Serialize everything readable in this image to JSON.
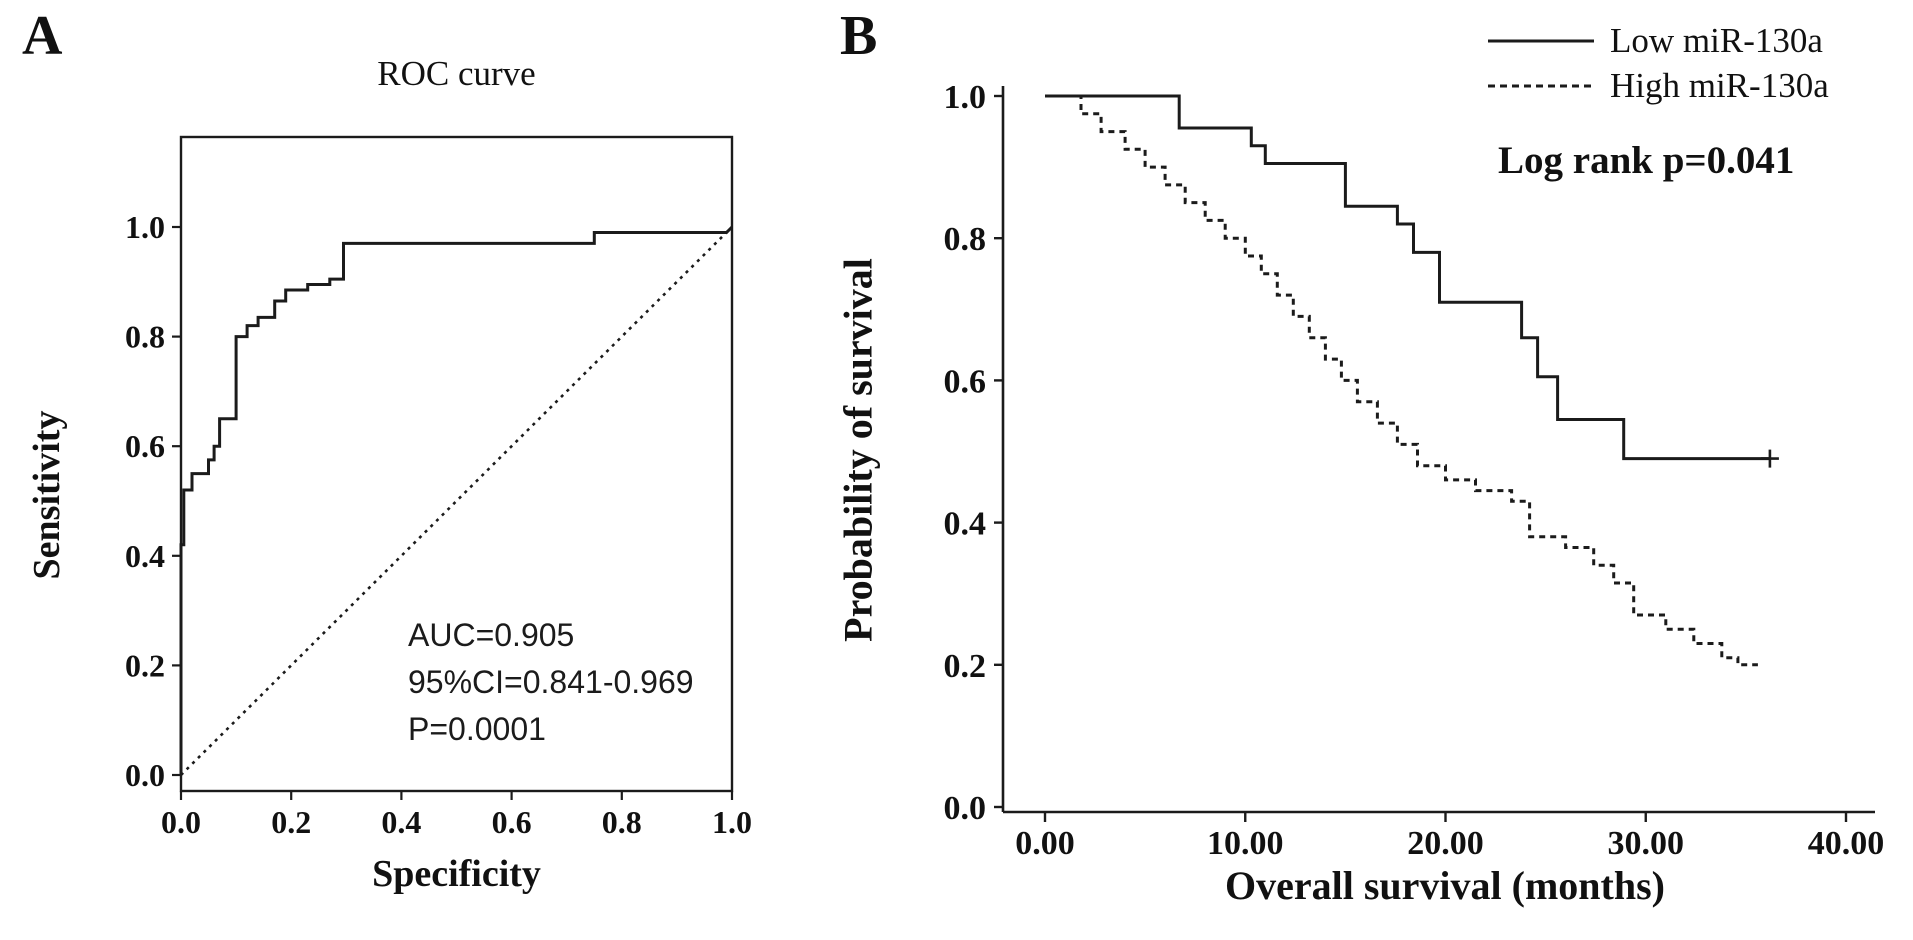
{
  "figure": {
    "background_color": "#ffffff",
    "line_color": "#1b1b1b",
    "panels": [
      {
        "label": "A"
      },
      {
        "label": "B"
      }
    ]
  },
  "chart_data": [
    {
      "type": "line",
      "panel": "A",
      "title": "ROC curve",
      "xlabel": "Specificity",
      "ylabel": "Sensitivity",
      "xlim": [
        0.0,
        1.0
      ],
      "ylim": [
        0.0,
        1.0
      ],
      "xtick_values": [
        0.0,
        0.2,
        0.4,
        0.6,
        0.8,
        1.0
      ],
      "xtick_labels": [
        "0.0",
        "0.2",
        "0.4",
        "0.6",
        "0.8",
        "1.0"
      ],
      "ytick_values": [
        0.0,
        0.2,
        0.4,
        0.6,
        0.8,
        1.0
      ],
      "ytick_labels": [
        "0.0",
        "0.2",
        "0.4",
        "0.6",
        "0.8",
        "1.0"
      ],
      "grid": false,
      "annotations": [
        "AUC=0.905",
        "95%CI=0.841-0.969",
        "P=0.0001"
      ],
      "series": [
        {
          "name": "ROC curve",
          "style": "solid",
          "step": false,
          "points": [
            [
              0.0,
              0.0
            ],
            [
              0.0,
              0.42
            ],
            [
              0.005,
              0.42
            ],
            [
              0.005,
              0.52
            ],
            [
              0.02,
              0.52
            ],
            [
              0.02,
              0.55
            ],
            [
              0.05,
              0.55
            ],
            [
              0.05,
              0.575
            ],
            [
              0.06,
              0.575
            ],
            [
              0.06,
              0.6
            ],
            [
              0.07,
              0.6
            ],
            [
              0.07,
              0.65
            ],
            [
              0.1,
              0.65
            ],
            [
              0.1,
              0.8
            ],
            [
              0.12,
              0.8
            ],
            [
              0.12,
              0.82
            ],
            [
              0.14,
              0.82
            ],
            [
              0.14,
              0.835
            ],
            [
              0.17,
              0.835
            ],
            [
              0.17,
              0.865
            ],
            [
              0.19,
              0.865
            ],
            [
              0.19,
              0.885
            ],
            [
              0.23,
              0.885
            ],
            [
              0.23,
              0.895
            ],
            [
              0.27,
              0.895
            ],
            [
              0.27,
              0.905
            ],
            [
              0.295,
              0.905
            ],
            [
              0.295,
              0.97
            ],
            [
              0.34,
              0.97
            ],
            [
              0.75,
              0.97
            ],
            [
              0.75,
              0.99
            ],
            [
              0.99,
              0.99
            ],
            [
              1.0,
              1.0
            ]
          ]
        },
        {
          "name": "Reference diagonal",
          "style": "dotted",
          "step": false,
          "points": [
            [
              0.0,
              0.0
            ],
            [
              1.0,
              1.0
            ]
          ]
        }
      ]
    },
    {
      "type": "line",
      "panel": "B",
      "title": "",
      "xlabel": "Overall survival (months)",
      "ylabel": "Probability of survival",
      "xlim": [
        0,
        40
      ],
      "ylim": [
        0.0,
        1.0
      ],
      "xtick_values": [
        0,
        10,
        20,
        30,
        40
      ],
      "xtick_labels": [
        "0.00",
        "10.00",
        "20.00",
        "30.00",
        "40.00"
      ],
      "ytick_values": [
        0.0,
        0.2,
        0.4,
        0.6,
        0.8,
        1.0
      ],
      "ytick_labels": [
        "0.0",
        "0.2",
        "0.4",
        "0.6",
        "0.8",
        "1.0"
      ],
      "grid": false,
      "annotation": "Log rank p=0.041",
      "legend": {
        "position": "top-right",
        "entries": [
          {
            "label": "Low miR-130a",
            "style": "solid"
          },
          {
            "label": "High miR-130a",
            "style": "dashed"
          }
        ]
      },
      "series": [
        {
          "name": "Low miR-130a",
          "style": "solid",
          "step": true,
          "points": [
            [
              0,
              1.0
            ],
            [
              6.7,
              0.955
            ],
            [
              10.3,
              0.93
            ],
            [
              11.0,
              0.905
            ],
            [
              15.0,
              0.845
            ],
            [
              17.6,
              0.82
            ],
            [
              18.4,
              0.78
            ],
            [
              19.7,
              0.71
            ],
            [
              23.8,
              0.66
            ],
            [
              24.6,
              0.605
            ],
            [
              25.6,
              0.545
            ],
            [
              28.9,
              0.49
            ],
            [
              36.2,
              0.49
            ]
          ]
        },
        {
          "name": "High miR-130a",
          "style": "dashed",
          "step": true,
          "points": [
            [
              0,
              1.0
            ],
            [
              1.8,
              0.975
            ],
            [
              2.8,
              0.95
            ],
            [
              4.0,
              0.925
            ],
            [
              5.0,
              0.9
            ],
            [
              6.0,
              0.875
            ],
            [
              7.0,
              0.85
            ],
            [
              8.0,
              0.825
            ],
            [
              9.0,
              0.8
            ],
            [
              10.0,
              0.775
            ],
            [
              10.8,
              0.75
            ],
            [
              11.6,
              0.72
            ],
            [
              12.4,
              0.69
            ],
            [
              13.2,
              0.66
            ],
            [
              14.0,
              0.63
            ],
            [
              14.8,
              0.6
            ],
            [
              15.6,
              0.57
            ],
            [
              16.6,
              0.54
            ],
            [
              17.6,
              0.51
            ],
            [
              18.6,
              0.48
            ],
            [
              20.0,
              0.46
            ],
            [
              21.5,
              0.445
            ],
            [
              23.3,
              0.43
            ],
            [
              24.2,
              0.38
            ],
            [
              26.0,
              0.365
            ],
            [
              27.4,
              0.34
            ],
            [
              28.4,
              0.315
            ],
            [
              29.4,
              0.27
            ],
            [
              31.0,
              0.25
            ],
            [
              32.4,
              0.23
            ],
            [
              33.8,
              0.21
            ],
            [
              34.6,
              0.2
            ],
            [
              35.6,
              0.2
            ]
          ]
        }
      ],
      "censor_marks": {
        "series": "Low miR-130a",
        "points": [
          [
            36.2,
            0.49
          ]
        ]
      }
    }
  ]
}
